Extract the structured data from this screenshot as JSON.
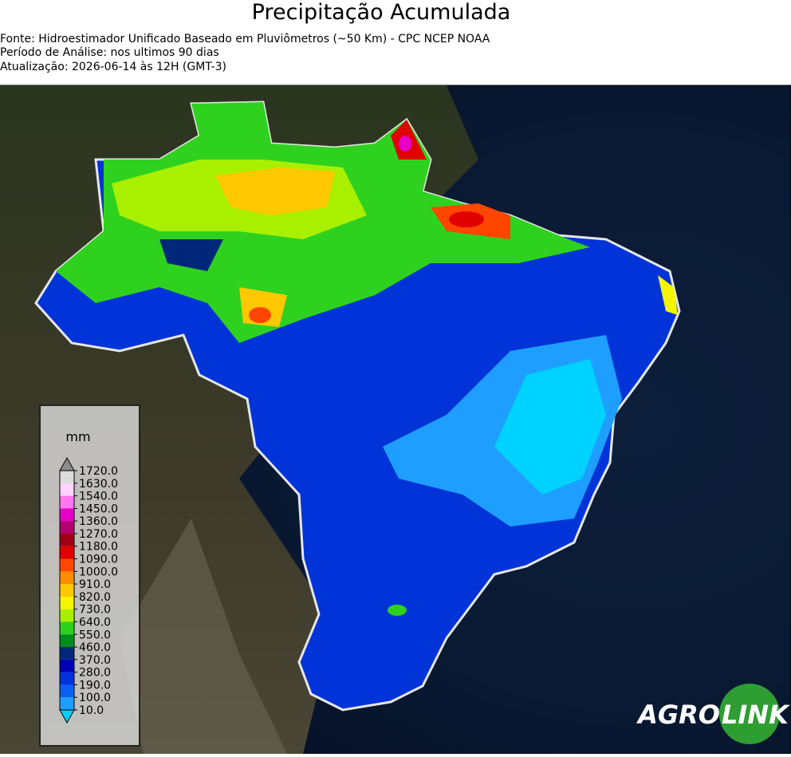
{
  "header": {
    "title": "Precipitação Acumulada",
    "lines": [
      "Fonte: Hidroestimador Unificado Baseado em Pluviômetros (~50 Km) - CPC NCEP NOAA",
      "Período de Análise: nos ultimos 90 dias",
      "Atualização: 2026-06-14 às 12H (GMT-3)"
    ]
  },
  "colorbar": {
    "unit": "mm",
    "ticks": [
      {
        "value": 10,
        "label": "10.0"
      },
      {
        "value": 100,
        "label": "100.0"
      },
      {
        "value": 190,
        "label": "190.0"
      },
      {
        "value": 280,
        "label": "280.0"
      },
      {
        "value": 370,
        "label": "370.0"
      },
      {
        "value": 460,
        "label": "460.0"
      },
      {
        "value": 550,
        "label": "550.0"
      },
      {
        "value": 640,
        "label": "640.0"
      },
      {
        "value": 730,
        "label": "730.0"
      },
      {
        "value": 820,
        "label": "820.0"
      },
      {
        "value": 910,
        "label": "910.0"
      },
      {
        "value": 1000,
        "label": "1000.0"
      },
      {
        "value": 1090,
        "label": "1090.0"
      },
      {
        "value": 1180,
        "label": "1180.0"
      },
      {
        "value": 1270,
        "label": "1270.0"
      },
      {
        "value": 1360,
        "label": "1360.0"
      },
      {
        "value": 1450,
        "label": "1450.0"
      },
      {
        "value": 1540,
        "label": "1540.0"
      },
      {
        "value": 1630,
        "label": "1630.0"
      },
      {
        "value": 1720,
        "label": "1720.0"
      }
    ],
    "colors": [
      "#1e9fff",
      "#0a5ff0",
      "#0032dc",
      "#0000b4",
      "#00287a",
      "#008c1e",
      "#2fd11f",
      "#a8f000",
      "#f5f500",
      "#ffc800",
      "#ff8c00",
      "#ff4600",
      "#e10000",
      "#a00014",
      "#b4006e",
      "#e600c8",
      "#ff78f0",
      "#ffd2ff",
      "#dcdcdc"
    ],
    "under_color": "#00d2ff",
    "over_color": "#8c8c8c"
  },
  "logo": {
    "left": "AGRO",
    "right": "LINK"
  }
}
